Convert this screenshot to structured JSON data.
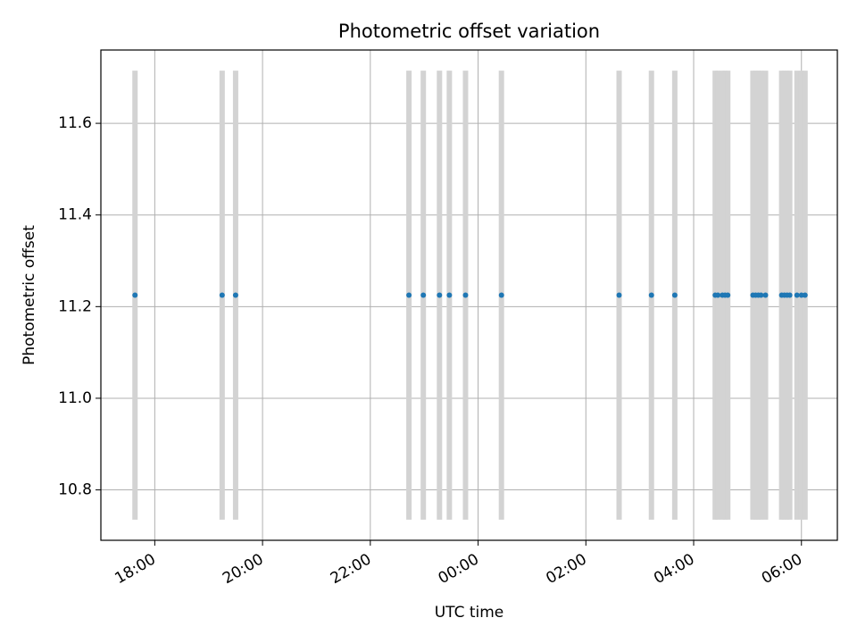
{
  "chart_data": {
    "type": "scatter",
    "title": "Photometric offset variation",
    "xlabel": "UTC time",
    "ylabel": "Photometric offset",
    "x_unit": "UTC time (HH:MM, evening to next morning)",
    "xlim": [
      "17:00",
      "06:40"
    ],
    "ylim": [
      10.69,
      11.76
    ],
    "grid": true,
    "x_ticks": [
      "18:00",
      "20:00",
      "22:00",
      "00:00",
      "02:00",
      "04:00",
      "06:00"
    ],
    "y_ticks": [
      10.8,
      11.0,
      11.2,
      11.4,
      11.6
    ],
    "y_tick_labels": [
      "10.8",
      "11.0",
      "11.2",
      "11.4",
      "11.6"
    ],
    "error_bar_color": "#d3d3d3",
    "marker_color": "#1f77b4",
    "points": [
      {
        "x": "17:38",
        "y": 11.225,
        "yerr": 0.49
      },
      {
        "x": "19:15",
        "y": 11.225,
        "yerr": 0.49
      },
      {
        "x": "19:30",
        "y": 11.225,
        "yerr": 0.49
      },
      {
        "x": "22:43",
        "y": 11.225,
        "yerr": 0.49
      },
      {
        "x": "22:59",
        "y": 11.225,
        "yerr": 0.49
      },
      {
        "x": "23:17",
        "y": 11.225,
        "yerr": 0.49
      },
      {
        "x": "23:28",
        "y": 11.225,
        "yerr": 0.49
      },
      {
        "x": "23:46",
        "y": 11.225,
        "yerr": 0.49
      },
      {
        "x": "00:26",
        "y": 11.225,
        "yerr": 0.49
      },
      {
        "x": "02:37",
        "y": 11.225,
        "yerr": 0.49
      },
      {
        "x": "03:13",
        "y": 11.225,
        "yerr": 0.49
      },
      {
        "x": "03:39",
        "y": 11.225,
        "yerr": 0.49
      },
      {
        "x": "04:24",
        "y": 11.225,
        "yerr": 0.49
      },
      {
        "x": "04:27",
        "y": 11.225,
        "yerr": 0.49
      },
      {
        "x": "04:32",
        "y": 11.225,
        "yerr": 0.49
      },
      {
        "x": "04:35",
        "y": 11.225,
        "yerr": 0.49
      },
      {
        "x": "04:38",
        "y": 11.225,
        "yerr": 0.49
      },
      {
        "x": "05:06",
        "y": 11.225,
        "yerr": 0.49
      },
      {
        "x": "05:09",
        "y": 11.225,
        "yerr": 0.49
      },
      {
        "x": "05:12",
        "y": 11.225,
        "yerr": 0.49
      },
      {
        "x": "05:15",
        "y": 11.225,
        "yerr": 0.49
      },
      {
        "x": "05:20",
        "y": 11.225,
        "yerr": 0.49
      },
      {
        "x": "05:38",
        "y": 11.225,
        "yerr": 0.49
      },
      {
        "x": "05:41",
        "y": 11.225,
        "yerr": 0.49
      },
      {
        "x": "05:44",
        "y": 11.225,
        "yerr": 0.49
      },
      {
        "x": "05:47",
        "y": 11.225,
        "yerr": 0.49
      },
      {
        "x": "05:55",
        "y": 11.225,
        "yerr": 0.49
      },
      {
        "x": "06:00",
        "y": 11.225,
        "yerr": 0.49
      },
      {
        "x": "06:04",
        "y": 11.225,
        "yerr": 0.49
      }
    ]
  }
}
